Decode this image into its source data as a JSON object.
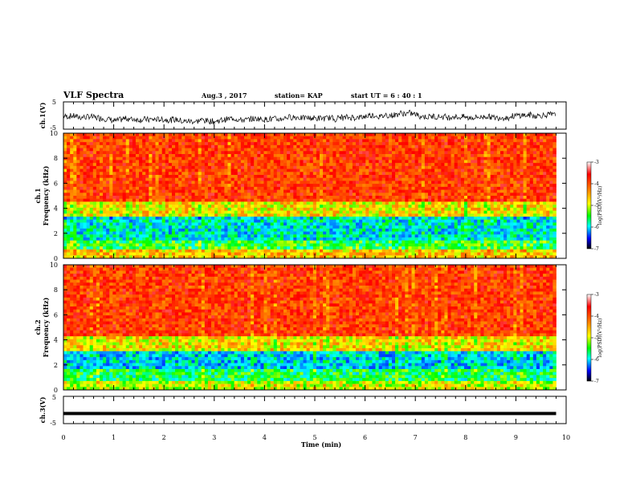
{
  "header": {
    "title": "VLF Spectra",
    "date": "Aug.3  , 2017",
    "station": "station= KAP",
    "start": "start  UT  =   6  : 40 : 1"
  },
  "chart_data": [
    {
      "type": "line",
      "panel": "waveform-ch1",
      "ylabel": "ch.1(V)",
      "ylim": [
        -5,
        5
      ],
      "y_ticks": [
        "5",
        "-5"
      ],
      "x_range_min": [
        0,
        9.8
      ],
      "note_values": "noisy waveform varying roughly between -3 and 2 V, centered near 0 V"
    },
    {
      "type": "heatmap",
      "panel": "spectrogram-ch1",
      "ylabel": "ch.1\nFrequency (kHz)",
      "ylim": [
        0,
        10
      ],
      "y_ticks": [
        "0",
        "2",
        "4",
        "6",
        "8",
        "10"
      ],
      "xlim": [
        0,
        10
      ],
      "data_extent_min": 9.8,
      "bands": [
        {
          "from_khz": 0.0,
          "to_khz": 0.8,
          "log_psd": -4.5
        },
        {
          "from_khz": 0.8,
          "to_khz": 1.5,
          "log_psd": -5.2
        },
        {
          "from_khz": 1.5,
          "to_khz": 3.3,
          "log_psd": -5.6
        },
        {
          "from_khz": 3.3,
          "to_khz": 4.5,
          "log_psd": -4.6
        },
        {
          "from_khz": 4.5,
          "to_khz": 10.0,
          "log_psd": -3.8
        }
      ]
    },
    {
      "type": "heatmap",
      "panel": "spectrogram-ch2",
      "ylabel": "ch.2\nFrequency (kHz)",
      "ylim": [
        0,
        10
      ],
      "y_ticks": [
        "0",
        "2",
        "4",
        "6",
        "8",
        "10"
      ],
      "xlim": [
        0,
        10
      ],
      "data_extent_min": 9.8,
      "bands": [
        {
          "from_khz": 0.0,
          "to_khz": 0.8,
          "log_psd": -4.8
        },
        {
          "from_khz": 0.8,
          "to_khz": 1.7,
          "log_psd": -5.3
        },
        {
          "from_khz": 1.7,
          "to_khz": 3.0,
          "log_psd": -5.7
        },
        {
          "from_khz": 3.0,
          "to_khz": 4.3,
          "log_psd": -4.6
        },
        {
          "from_khz": 4.3,
          "to_khz": 10.0,
          "log_psd": -3.8
        }
      ]
    },
    {
      "type": "line",
      "panel": "waveform-ch3",
      "ylabel": "ch.3(V)",
      "ylim": [
        -5,
        5
      ],
      "y_ticks": [
        "5",
        "-5"
      ],
      "x_range_min": [
        0,
        9.8
      ],
      "level_v": -1.3
    }
  ],
  "x_axis": {
    "label": "Time  (min)",
    "range": [
      0,
      10
    ],
    "ticks": [
      "0",
      "1",
      "2",
      "3",
      "4",
      "5",
      "6",
      "7",
      "8",
      "9",
      "10"
    ]
  },
  "colorbar": {
    "label": "log(PSD)(V²/Hz)",
    "range": [
      -7,
      -3
    ],
    "ticks": [
      "-3",
      "-4",
      "-5",
      "-6",
      "-7"
    ],
    "colors": [
      "#ffffff",
      "#ff0000",
      "#ff8000",
      "#ffff00",
      "#00ff00",
      "#00ffff",
      "#0000ff",
      "#000000"
    ]
  }
}
